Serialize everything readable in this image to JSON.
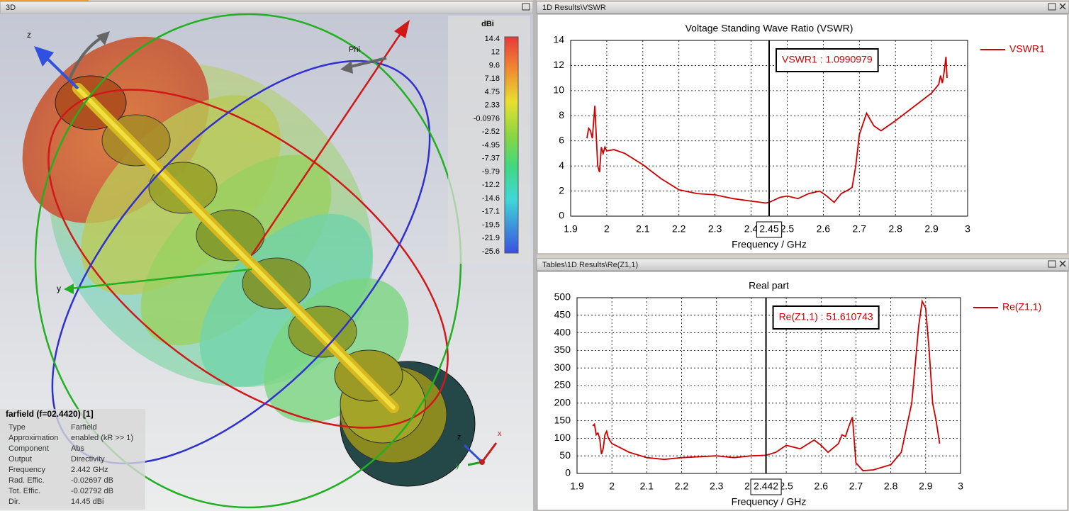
{
  "windows": {
    "left_title": "3D",
    "top_right_title": "1D Results\\VSWR",
    "bottom_right_title": "Tables\\1D Results\\Re(Z1,1)"
  },
  "view3d": {
    "axis_labels": {
      "z": "z",
      "phi": "Phi",
      "y": "y"
    },
    "triad": {
      "z": "z",
      "x": "x",
      "y": "y"
    },
    "colorbar": {
      "unit": "dBi",
      "labels": [
        14.4,
        12,
        9.6,
        7.18,
        4.75,
        2.33,
        -0.0976,
        -2.52,
        -4.95,
        -7.37,
        -9.79,
        -12.2,
        -14.6,
        -17.1,
        -19.5,
        -21.9,
        -25.6
      ]
    },
    "info": {
      "title": "farfield (f=02.4420) [1]",
      "rows": [
        [
          "Type",
          "Farfield"
        ],
        [
          "Approximation",
          "enabled (kR >> 1)"
        ],
        [
          "Component",
          "Abs"
        ],
        [
          "Output",
          "Directivity"
        ],
        [
          "Frequency",
          "2.442 GHz"
        ],
        [
          "Rad. Effic.",
          "-0.02697 dB"
        ],
        [
          "Tot. Effic.",
          "-0.02792 dB"
        ],
        [
          "Dir.",
          "14.45 dBi"
        ]
      ]
    }
  },
  "chart_data": [
    {
      "type": "line",
      "title": "Voltage Standing Wave Ratio (VSWR)",
      "x_label": "Frequency / GHz",
      "xlim": [
        1.9,
        3
      ],
      "xticks": [
        1.9,
        2,
        2.1,
        2.2,
        2.3,
        2.4,
        2.5,
        2.6,
        2.7,
        2.8,
        2.9,
        3
      ],
      "ylim": [
        0,
        14
      ],
      "yticks": [
        0,
        2,
        4,
        6,
        8,
        10,
        12,
        14
      ],
      "grid": true,
      "legend": "right",
      "x": [
        1.945,
        1.95,
        1.955,
        1.96,
        1.965,
        1.967,
        1.97,
        1.975,
        1.98,
        1.985,
        1.99,
        1.995,
        2.0,
        2.02,
        2.05,
        2.1,
        2.15,
        2.2,
        2.25,
        2.3,
        2.35,
        2.4,
        2.44,
        2.45,
        2.48,
        2.5,
        2.53,
        2.56,
        2.59,
        2.61,
        2.63,
        2.65,
        2.67,
        2.68,
        2.69,
        2.7,
        2.72,
        2.74,
        2.76,
        2.8,
        2.85,
        2.9,
        2.92,
        2.925,
        2.93,
        2.935,
        2.94,
        2.943
      ],
      "series": [
        {
          "name": "VSWR1",
          "color": "#cc0000",
          "values": [
            6.2,
            7.0,
            6.8,
            6.2,
            8.0,
            8.8,
            7.0,
            4.0,
            3.5,
            5.5,
            5.0,
            5.5,
            5.2,
            5.3,
            5.0,
            4.1,
            3.0,
            2.1,
            1.8,
            1.7,
            1.4,
            1.2,
            1.05,
            1.1,
            1.5,
            1.6,
            1.4,
            1.8,
            2.0,
            1.6,
            1.1,
            1.8,
            2.1,
            2.3,
            4.0,
            6.5,
            8.2,
            7.2,
            6.8,
            7.6,
            8.7,
            9.8,
            10.5,
            11.2,
            10.6,
            11.5,
            12.7,
            11.0
          ]
        }
      ],
      "marker": {
        "x": 2.45,
        "label": "VSWR1 : 1.0990979"
      }
    },
    {
      "type": "line",
      "title": "Real part",
      "x_label": "Frequency / GHz",
      "xlim": [
        1.9,
        3
      ],
      "xticks": [
        1.9,
        2,
        2.1,
        2.2,
        2.3,
        2.4,
        2.5,
        2.6,
        2.7,
        2.8,
        2.9,
        3
      ],
      "ylim": [
        0,
        500
      ],
      "yticks": [
        0,
        50,
        100,
        150,
        200,
        250,
        300,
        350,
        400,
        450,
        500
      ],
      "grid": true,
      "legend": "right",
      "x": [
        1.945,
        1.95,
        1.955,
        1.96,
        1.965,
        1.97,
        1.975,
        1.98,
        1.985,
        1.99,
        2.0,
        2.05,
        2.1,
        2.15,
        2.2,
        2.3,
        2.35,
        2.4,
        2.442,
        2.47,
        2.5,
        2.52,
        2.54,
        2.58,
        2.6,
        2.62,
        2.65,
        2.66,
        2.67,
        2.68,
        2.69,
        2.7,
        2.72,
        2.75,
        2.8,
        2.83,
        2.86,
        2.88,
        2.89,
        2.9,
        2.91,
        2.92,
        2.93,
        2.94
      ],
      "series": [
        {
          "name": "Re(Z1,1)",
          "color": "#cc0000",
          "values": [
            135,
            140,
            110,
            115,
            100,
            55,
            70,
            110,
            120,
            100,
            85,
            60,
            45,
            40,
            45,
            50,
            45,
            50,
            51.6,
            60,
            80,
            75,
            70,
            95,
            80,
            60,
            85,
            110,
            105,
            135,
            160,
            30,
            8,
            10,
            25,
            60,
            200,
            420,
            490,
            470,
            350,
            200,
            150,
            85
          ]
        }
      ],
      "marker": {
        "x": 2.442,
        "label": "Re(Z1,1) : 51.610743"
      }
    }
  ]
}
